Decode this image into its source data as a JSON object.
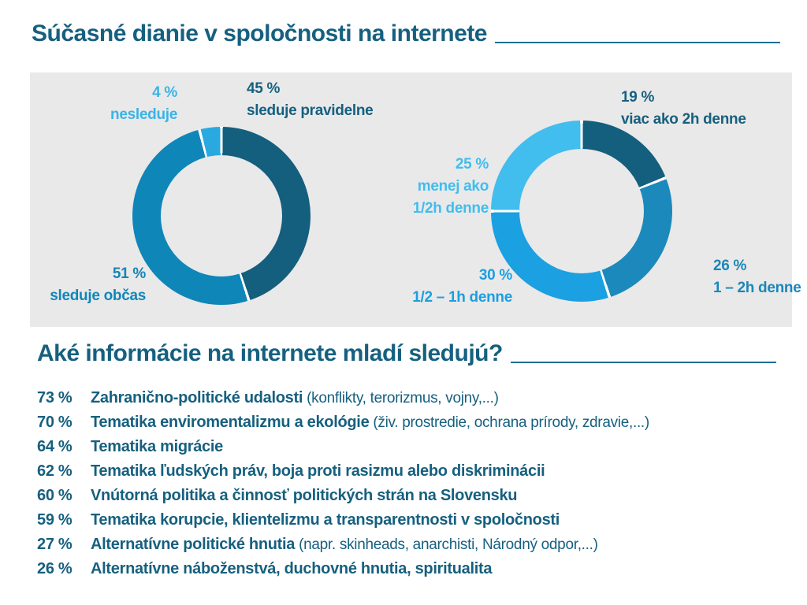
{
  "title": "Súčasné dianie v spoločnosti na internete",
  "subtitle": "Aké informácie na internete mladí sledujú?",
  "colors": {
    "heading": "#16607f",
    "panel_bg": "#e9e9e9",
    "dark_teal": "#145e7e",
    "medium_blue": "#0f86b8",
    "medium_blue2": "#1b89bb",
    "bright_blue": "#1ba0e1",
    "light_blue": "#29a9e0",
    "lighter_blue": "#41bdee",
    "separator": "#ffffff"
  },
  "chart_data": [
    {
      "type": "pie",
      "subtype": "donut",
      "title": "",
      "legend_position": "outside-labels",
      "start_angle_deg": 0,
      "direction": "clockwise",
      "segments": [
        {
          "label": "sleduje pravidelne",
          "value": 45,
          "color": "#145e7e"
        },
        {
          "label": "sleduje občas",
          "value": 51,
          "color": "#0f86b8"
        },
        {
          "label": "nesleduje",
          "value": 4,
          "color": "#29a9e0"
        }
      ]
    },
    {
      "type": "pie",
      "subtype": "donut",
      "title": "",
      "legend_position": "outside-labels",
      "start_angle_deg": 0,
      "direction": "clockwise",
      "segments": [
        {
          "label": "viac ako 2h denne",
          "value": 19,
          "color": "#145e7e"
        },
        {
          "label": "1 – 2h denne",
          "value": 26,
          "color": "#1b89bb"
        },
        {
          "label": "1/2 – 1h denne",
          "value": 30,
          "color": "#1ba0e1"
        },
        {
          "label": "menej ako 1/2h denne",
          "value": 25,
          "color": "#41bdee"
        }
      ]
    }
  ],
  "chart1_labels": {
    "nesleduje": {
      "l1": "4 %",
      "l2": "nesleduje"
    },
    "pravidelne": {
      "l1": "45 %",
      "l2": "sleduje pravidelne"
    },
    "obcas": {
      "l1": "51 %",
      "l2": "sleduje občas"
    }
  },
  "chart2_labels": {
    "viac2h": {
      "l1": "19 %",
      "l2": "viac ako 2h denne"
    },
    "menej": {
      "l1": "25 %",
      "l2": "menej ako",
      "l3": "1/2h denne"
    },
    "pol1h": {
      "l1": "30 %",
      "l2": "1/2 – 1h denne"
    },
    "jeden2h": {
      "l1": "26 %",
      "l2": "1 – 2h denne"
    }
  },
  "list": {
    "items": [
      {
        "pct": "73 %",
        "topic": "Zahranično-politické udalosti",
        "note": "(konflikty, terorizmus, vojny,...)"
      },
      {
        "pct": "70 %",
        "topic": "Tematika enviromentalizmu a ekológie",
        "note": "(živ. prostredie, ochrana prírody, zdravie,...)"
      },
      {
        "pct": "64 %",
        "topic": "Tematika migrácie",
        "note": ""
      },
      {
        "pct": "62 %",
        "topic": "Tematika ľudských práv, boja proti rasizmu alebo diskriminácii",
        "note": ""
      },
      {
        "pct": "60 %",
        "topic": "Vnútorná politika a činnosť politických strán na Slovensku",
        "note": ""
      },
      {
        "pct": "59 %",
        "topic": "Tematika korupcie, klientelizmu a transparentnosti v spoločnosti",
        "note": ""
      },
      {
        "pct": "27 %",
        "topic": "Alternatívne politické hnutia",
        "note": "(napr. skinheads, anarchisti, Národný odpor,...)"
      },
      {
        "pct": "26 %",
        "topic": "Alternatívne náboženstvá, duchovné hnutia, spiritualita",
        "note": ""
      }
    ]
  }
}
